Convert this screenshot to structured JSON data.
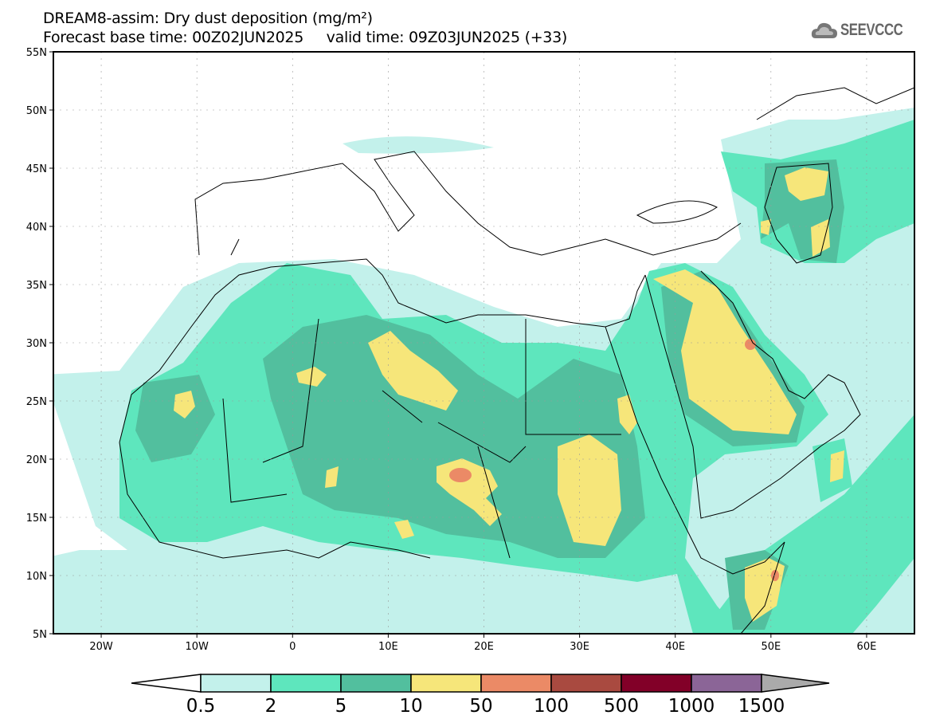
{
  "header": {
    "title": "DREAM8-assim: Dry dust deposition (mg/m²)",
    "subtitle": "Forecast base time: 00Z02JUN2025     valid time: 09Z03JUN2025 (+33)",
    "logo_text": "SEEVCCC"
  },
  "map": {
    "lat_labels": [
      "55N",
      "50N",
      "45N",
      "40N",
      "35N",
      "30N",
      "25N",
      "20N",
      "15N",
      "10N",
      "5N"
    ],
    "lon_labels": [
      "20W",
      "10W",
      "0",
      "10E",
      "20E",
      "30E",
      "40E",
      "50E",
      "60E"
    ]
  },
  "colorbar": {
    "levels": [
      "0.5",
      "2",
      "5",
      "10",
      "50",
      "100",
      "500",
      "1000",
      "1500"
    ],
    "colors": [
      "#ffffff",
      "#c3f1eb",
      "#5ee6bd",
      "#52bf9e",
      "#f6e67a",
      "#eb8a66",
      "#a94a40",
      "#820028",
      "#8b6597",
      "#aaaaaa"
    ]
  }
}
